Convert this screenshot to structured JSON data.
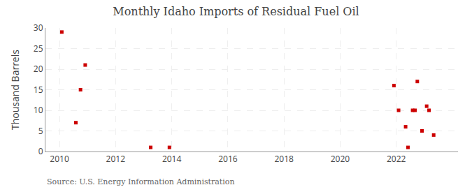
{
  "chart_data": {
    "type": "scatter",
    "title": "Monthly Idaho Imports of Residual Fuel Oil",
    "ylabel": "Thousand Barrels",
    "annotations": [
      "Source: U.S. Energy Information Administration"
    ],
    "x": [
      2010.083,
      2010.583,
      2010.75,
      2010.917,
      2013.25,
      2013.917,
      2021.917,
      2022.083,
      2022.333,
      2022.417,
      2022.583,
      2022.667,
      2022.75,
      2022.917,
      2023.083,
      2023.167,
      2023.333
    ],
    "values": [
      29,
      7,
      15,
      21,
      1,
      1,
      16,
      10,
      6,
      1,
      10,
      10,
      17,
      5,
      11,
      10,
      4
    ],
    "color": "#cc0000",
    "marker": "square",
    "xlim": [
      2009.5,
      2024.2
    ],
    "ylim": [
      0,
      30
    ],
    "xticks": [
      2010,
      2012,
      2014,
      2016,
      2018,
      2020,
      2022
    ],
    "yticks": [
      0,
      5,
      10,
      15,
      20,
      25,
      30
    ],
    "grid": true
  }
}
